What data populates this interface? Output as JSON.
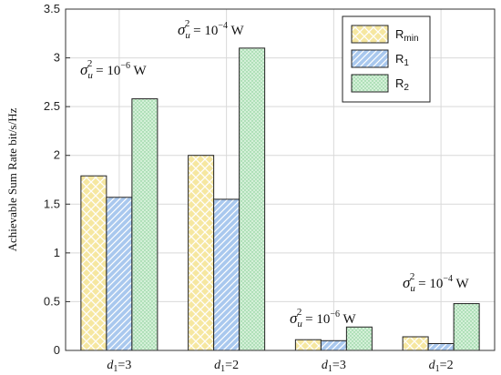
{
  "chart_data": {
    "type": "bar",
    "ylabel": "Achievable Sum Rate  bit/s/Hz",
    "ylim": [
      0,
      3.5
    ],
    "yticks": [
      "0",
      "0.5",
      "1",
      "1.5",
      "2",
      "2.5",
      "3",
      "3.5"
    ],
    "grid": true,
    "legend_position": "top-right",
    "categories": [
      {
        "var": "d",
        "sub": "1",
        "rest": "=3"
      },
      {
        "var": "d",
        "sub": "1",
        "rest": "=2"
      },
      {
        "var": "d",
        "sub": "1",
        "rest": "=3"
      },
      {
        "var": "d",
        "sub": "1",
        "rest": "=2"
      }
    ],
    "series": [
      {
        "name_main": "R",
        "name_sub": "min",
        "color": "#f6e7a0",
        "pattern": "crosshatch",
        "values": [
          1.79,
          2.0,
          0.11,
          0.14
        ]
      },
      {
        "name_main": "R",
        "name_sub": "1",
        "color": "#a9c8ee",
        "pattern": "diagonal",
        "values": [
          1.57,
          1.55,
          0.1,
          0.07
        ]
      },
      {
        "name_main": "R",
        "name_sub": "2",
        "color": "#d4f0d8",
        "pattern": "dots",
        "values": [
          2.58,
          3.1,
          0.24,
          0.48
        ]
      }
    ],
    "annotations": [
      {
        "sigma": "σ",
        "sub": "u",
        "sup": "2",
        "eq": " = 10",
        "exp": "−6",
        "unit": " W",
        "category": 0
      },
      {
        "sigma": "σ",
        "sub": "u",
        "sup": "2",
        "eq": " = 10",
        "exp": "−4",
        "unit": " W",
        "category": 1
      },
      {
        "sigma": "σ",
        "sub": "u",
        "sup": "2",
        "eq": " = 10",
        "exp": "−6",
        "unit": " W",
        "category": 2
      },
      {
        "sigma": "σ",
        "sub": "u",
        "sup": "2",
        "eq": " = 10",
        "exp": "−4",
        "unit": " W",
        "category": 3
      }
    ]
  }
}
